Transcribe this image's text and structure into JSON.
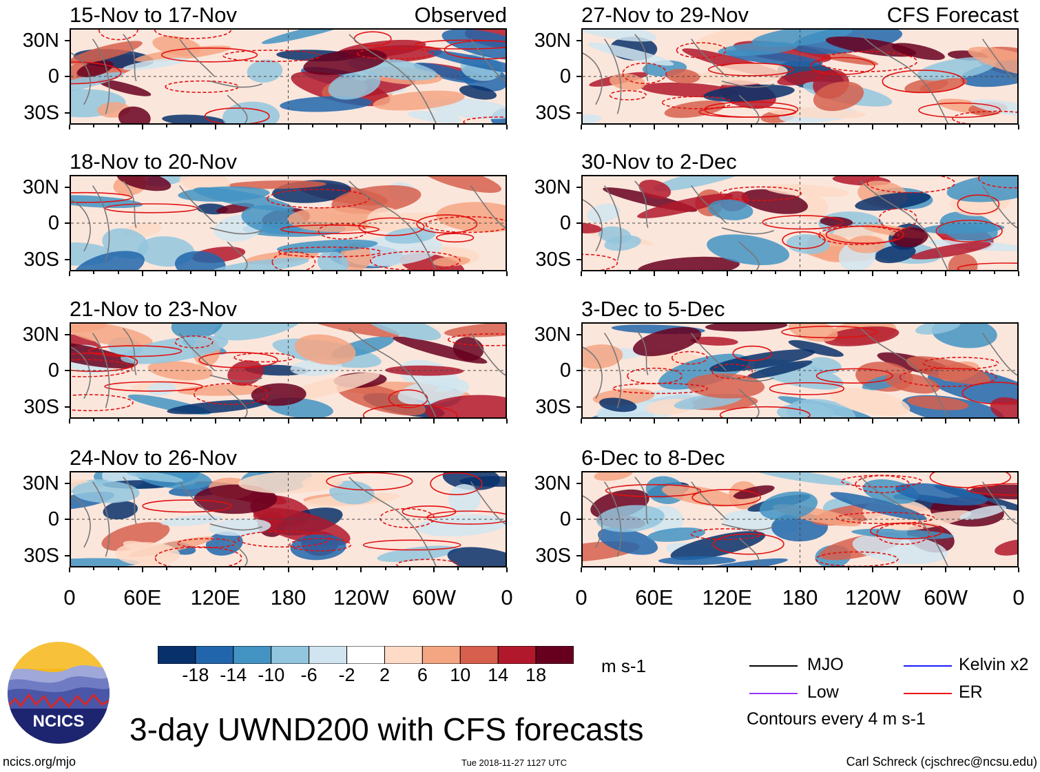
{
  "chart_data": {
    "type": "heatmap",
    "title": "3-day UWND200 with CFS forecasts",
    "variable": "UWND200",
    "units": "m s-1",
    "contour_note": "Contours every 4 m s-1",
    "x_ticks": [
      "0",
      "60E",
      "120E",
      "180",
      "120W",
      "60W",
      "0"
    ],
    "x_tick_values": [
      0,
      60,
      120,
      180,
      240,
      300,
      360
    ],
    "y_ticks": [
      "30N",
      "0",
      "30S"
    ],
    "y_tick_values": [
      30,
      0,
      -30
    ],
    "xlim": [
      0,
      360
    ],
    "ylim": [
      -40,
      40
    ],
    "panels": [
      {
        "period": "15-Nov to 17-Nov",
        "source": "Observed",
        "column": "left"
      },
      {
        "period": "18-Nov to 20-Nov",
        "source": "",
        "column": "left"
      },
      {
        "period": "21-Nov to 23-Nov",
        "source": "",
        "column": "left"
      },
      {
        "period": "24-Nov to 26-Nov",
        "source": "",
        "column": "left"
      },
      {
        "period": "27-Nov to 29-Nov",
        "source": "CFS Forecast",
        "column": "right"
      },
      {
        "period": "30-Nov to 2-Dec",
        "source": "",
        "column": "right"
      },
      {
        "period": "3-Dec to 5-Dec",
        "source": "",
        "column": "right"
      },
      {
        "period": "6-Dec to 8-Dec",
        "source": "",
        "column": "right"
      }
    ],
    "colorbar": {
      "ticks": [
        "-18",
        "-14",
        "-10",
        "-6",
        "-2",
        "2",
        "6",
        "10",
        "14",
        "18"
      ],
      "colors": [
        "#08306b",
        "#2166ac",
        "#4393c3",
        "#92c5de",
        "#d1e5f0",
        "#ffffff",
        "#fddbc7",
        "#f4a582",
        "#d6604d",
        "#b2182b",
        "#67001f"
      ]
    },
    "legend": [
      {
        "label": "MJO",
        "color": "#000000"
      },
      {
        "label": "Kelvin x2",
        "color": "#1a1aff"
      },
      {
        "label": "Low",
        "color": "#9933ff"
      },
      {
        "label": "ER",
        "color": "#ee1111"
      }
    ]
  },
  "branding": {
    "logo_text": "NCICS",
    "url": "ncics.org/mjo",
    "timestamp": "Tue 2018-11-27 1127 UTC",
    "author": "Carl Schreck (cjschrec@ncsu.edu)"
  }
}
